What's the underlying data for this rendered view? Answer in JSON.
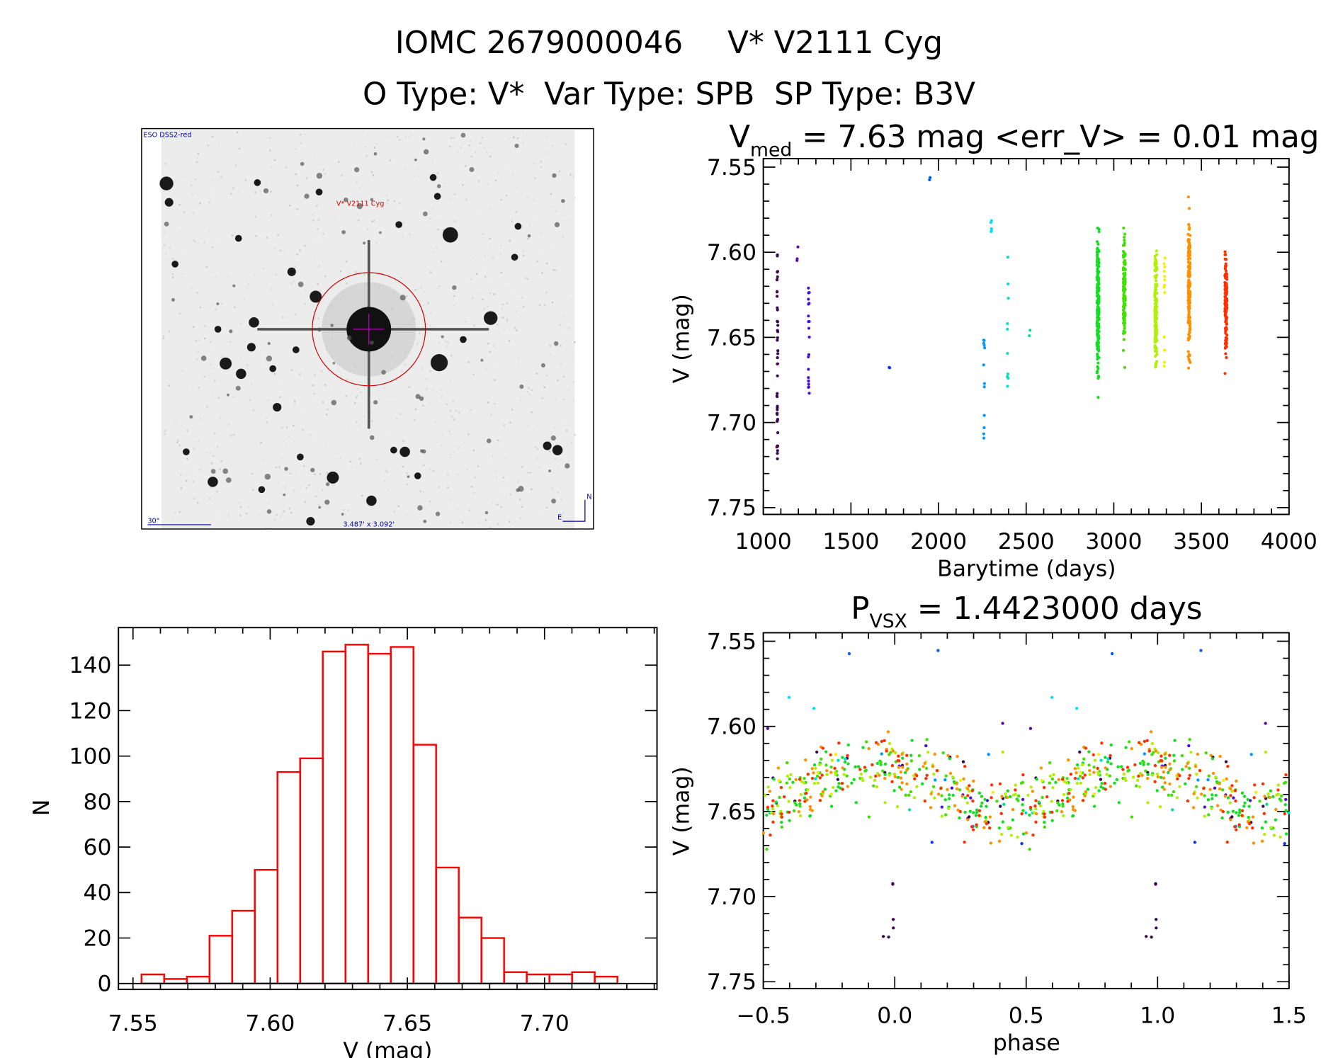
{
  "header": {
    "title_id": "IOMC 2679000046",
    "title_name": "V* V2111 Cyg",
    "subtitle": "O Type: V*  Var Type: SPB  SP Type: B3V"
  },
  "sky_image": {
    "survey": "ESO DSS2-red",
    "target": "V* V2111 Cyg",
    "scale": "30\"",
    "field_size": "3.487' x 3.092'",
    "east": "E",
    "north": "N"
  },
  "chart_data": [
    {
      "id": "light_curve",
      "type": "scatter",
      "title_main": "V",
      "title_sub": "med",
      "title_rest": " = 7.63 mag <err_V> = 0.01 mag",
      "xlabel": "Barytime (days)",
      "ylabel": "V (mag)",
      "xlim": [
        1000,
        4000
      ],
      "ylim": [
        7.754,
        7.545
      ],
      "xticks": [
        {
          "v": 1000,
          "label": "1000"
        },
        {
          "v": 1500,
          "label": "1500"
        },
        {
          "v": 2000,
          "label": "2000"
        },
        {
          "v": 2500,
          "label": "2500"
        },
        {
          "v": 3000,
          "label": "3000"
        },
        {
          "v": 3500,
          "label": "3500"
        },
        {
          "v": 4000,
          "label": "4000"
        }
      ],
      "yticks": [
        {
          "v": 7.55,
          "label": "7.55"
        },
        {
          "v": 7.6,
          "label": "7.60"
        },
        {
          "v": 7.65,
          "label": "7.65"
        },
        {
          "v": 7.7,
          "label": "7.70"
        },
        {
          "v": 7.75,
          "label": "7.75"
        }
      ],
      "clusters": [
        {
          "t": 1080,
          "v": [
            7.6,
            7.725
          ],
          "n": 45,
          "color": "#3c0a50"
        },
        {
          "t": 1195,
          "v": [
            7.594,
            7.607
          ],
          "n": 3,
          "color": "#5a10a0"
        },
        {
          "t": 1260,
          "v": [
            7.62,
            7.683
          ],
          "n": 20,
          "color": "#4a10e0"
        },
        {
          "t": 1720,
          "v": [
            7.667,
            7.67
          ],
          "n": 3,
          "color": "#1030ff"
        },
        {
          "t": 1950,
          "v": [
            7.555,
            7.558
          ],
          "n": 2,
          "color": "#0060ff"
        },
        {
          "t": 2260,
          "v": [
            7.643,
            7.71
          ],
          "n": 12,
          "color": "#0098ff"
        },
        {
          "t": 2300,
          "v": [
            7.579,
            7.59
          ],
          "n": 5,
          "color": "#00e0ff"
        },
        {
          "t": 2395,
          "v": [
            7.6,
            7.683
          ],
          "n": 10,
          "color": "#00e0c8"
        },
        {
          "t": 2520,
          "v": [
            7.64,
            7.651
          ],
          "n": 2,
          "color": "#00e090"
        },
        {
          "t": 2910,
          "v": [
            7.573,
            7.69
          ],
          "n": 200,
          "color": "#10e020"
        },
        {
          "t": 3060,
          "v": [
            7.572,
            7.674
          ],
          "n": 120,
          "color": "#40e000"
        },
        {
          "t": 3240,
          "v": [
            7.578,
            7.691
          ],
          "n": 150,
          "color": "#b0f000"
        },
        {
          "t": 3290,
          "v": [
            7.6,
            7.667
          ],
          "n": 15,
          "color": "#f0f000"
        },
        {
          "t": 3430,
          "v": [
            7.559,
            7.683
          ],
          "n": 150,
          "color": "#ff9000"
        },
        {
          "t": 3640,
          "v": [
            7.588,
            7.675
          ],
          "n": 150,
          "color": "#ff3000"
        }
      ]
    },
    {
      "id": "histogram",
      "type": "bar",
      "xlabel": "V (mag)",
      "ylabel": "N",
      "xlim": [
        7.5447,
        7.741
      ],
      "ylim": [
        -2.6,
        156.5
      ],
      "bin_start": 7.5531,
      "bin_width": 0.00826,
      "values": [
        4,
        2,
        3,
        21,
        32,
        50,
        93,
        99,
        146,
        149,
        145,
        148,
        105,
        51,
        29,
        20,
        5,
        4,
        4,
        5,
        3
      ],
      "color": "#ff0000",
      "xticks": [
        {
          "v": 7.55,
          "label": "7.55"
        },
        {
          "v": 7.6,
          "label": "7.60"
        },
        {
          "v": 7.65,
          "label": "7.65"
        },
        {
          "v": 7.7,
          "label": "7.70"
        }
      ],
      "yticks": [
        {
          "v": 0,
          "label": "0"
        },
        {
          "v": 20,
          "label": "20"
        },
        {
          "v": 40,
          "label": "40"
        },
        {
          "v": 60,
          "label": "60"
        },
        {
          "v": 80,
          "label": "80"
        },
        {
          "v": 100,
          "label": "100"
        },
        {
          "v": 120,
          "label": "120"
        },
        {
          "v": 140,
          "label": "140"
        }
      ]
    },
    {
      "id": "phase_curve",
      "type": "scatter",
      "title_main": "P",
      "title_sub": "VSX",
      "title_rest": " = 1.4423000 days",
      "period_days": 1.4423,
      "xlabel": "phase",
      "ylabel": "V (mag)",
      "xlim": [
        -0.5,
        1.5
      ],
      "ylim": [
        7.754,
        7.545
      ],
      "xticks": [
        {
          "v": -0.5,
          "label": "−0.5"
        },
        {
          "v": 0,
          "label": "0.0"
        },
        {
          "v": 0.5,
          "label": "0.5"
        },
        {
          "v": 1.0,
          "label": "1.0"
        },
        {
          "v": 1.5,
          "label": "1.5"
        }
      ],
      "yticks": [
        {
          "v": 7.55,
          "label": "7.55"
        },
        {
          "v": 7.6,
          "label": "7.60"
        },
        {
          "v": 7.65,
          "label": "7.65"
        },
        {
          "v": 7.7,
          "label": "7.70"
        },
        {
          "v": 7.75,
          "label": "7.75"
        }
      ],
      "mean_mag": 7.635,
      "amplitude": 0.012
    }
  ]
}
